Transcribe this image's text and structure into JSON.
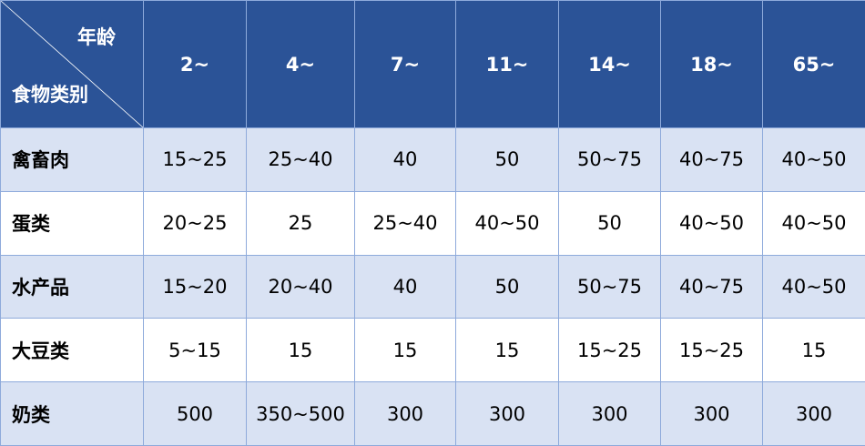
{
  "header": {
    "corner_top": "年龄",
    "corner_bottom": "食物类别",
    "ages": [
      "2~",
      "4~",
      "7~",
      "11~",
      "14~",
      "18~",
      "65~"
    ]
  },
  "rows": [
    {
      "category": "禽畜肉",
      "values": [
        "15~25",
        "25~40",
        "40",
        "50",
        "50~75",
        "40~75",
        "40~50"
      ]
    },
    {
      "category": "蛋类",
      "values": [
        "20~25",
        "25",
        "25~40",
        "40~50",
        "50",
        "40~50",
        "40~50"
      ]
    },
    {
      "category": "水产品",
      "values": [
        "15~20",
        "20~40",
        "40",
        "50",
        "50~75",
        "40~75",
        "40~50"
      ]
    },
    {
      "category": "大豆类",
      "values": [
        "5~15",
        "15",
        "15",
        "15",
        "15~25",
        "15~25",
        "15"
      ]
    },
    {
      "category": "奶类",
      "values": [
        "500",
        "350~500",
        "300",
        "300",
        "300",
        "300",
        "300"
      ]
    }
  ],
  "colors": {
    "header": "#2b5397",
    "stripe": "#d9e2f3",
    "border": "#8eaadb"
  }
}
